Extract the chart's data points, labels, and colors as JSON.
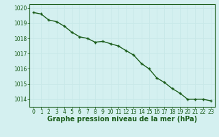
{
  "x": [
    0,
    1,
    2,
    3,
    4,
    5,
    6,
    7,
    8,
    9,
    10,
    11,
    12,
    13,
    14,
    15,
    16,
    17,
    18,
    19,
    20,
    21,
    22,
    23
  ],
  "y": [
    1019.7,
    1019.6,
    1019.2,
    1019.1,
    1018.8,
    1018.4,
    1018.1,
    1018.0,
    1017.75,
    1017.8,
    1017.65,
    1017.5,
    1017.2,
    1016.9,
    1016.35,
    1016.0,
    1015.4,
    1015.1,
    1014.7,
    1014.4,
    1014.0,
    1014.0,
    1014.0,
    1013.9
  ],
  "ylim": [
    1013.5,
    1020.25
  ],
  "yticks": [
    1014,
    1015,
    1016,
    1017,
    1018,
    1019,
    1020
  ],
  "xticks": [
    0,
    1,
    2,
    3,
    4,
    5,
    6,
    7,
    8,
    9,
    10,
    11,
    12,
    13,
    14,
    15,
    16,
    17,
    18,
    19,
    20,
    21,
    22,
    23
  ],
  "xlabel": "Graphe pression niveau de la mer (hPa)",
  "line_color": "#1a5c1a",
  "marker_color": "#1a5c1a",
  "bg_color": "#d4f0f0",
  "grid_color": "#c8e8e8",
  "tick_color": "#1a5c1a",
  "label_color": "#1a5c1a",
  "xlabel_fontsize": 7.0,
  "tick_fontsize": 5.5,
  "line_width": 1.0,
  "marker_size": 3.5
}
